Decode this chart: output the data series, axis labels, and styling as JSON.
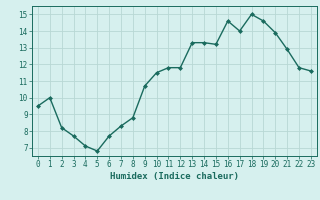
{
  "x": [
    0,
    1,
    2,
    3,
    4,
    5,
    6,
    7,
    8,
    9,
    10,
    11,
    12,
    13,
    14,
    15,
    16,
    17,
    18,
    19,
    20,
    21,
    22,
    23
  ],
  "y": [
    9.5,
    10.0,
    8.2,
    7.7,
    7.1,
    6.8,
    7.7,
    8.3,
    8.8,
    10.7,
    11.5,
    11.8,
    11.8,
    13.3,
    13.3,
    13.2,
    14.6,
    14.0,
    15.0,
    14.6,
    13.9,
    12.9,
    11.8,
    11.6
  ],
  "line_color": "#1a6b5e",
  "marker": "D",
  "marker_size": 2.0,
  "bg_color": "#d6f0ee",
  "grid_color": "#b8d8d4",
  "xlabel": "Humidex (Indice chaleur)",
  "ylabel_ticks": [
    7,
    8,
    9,
    10,
    11,
    12,
    13,
    14,
    15
  ],
  "xlim": [
    -0.5,
    23.5
  ],
  "ylim": [
    6.5,
    15.5
  ],
  "tick_fontsize": 5.5,
  "xlabel_fontsize": 6.5
}
